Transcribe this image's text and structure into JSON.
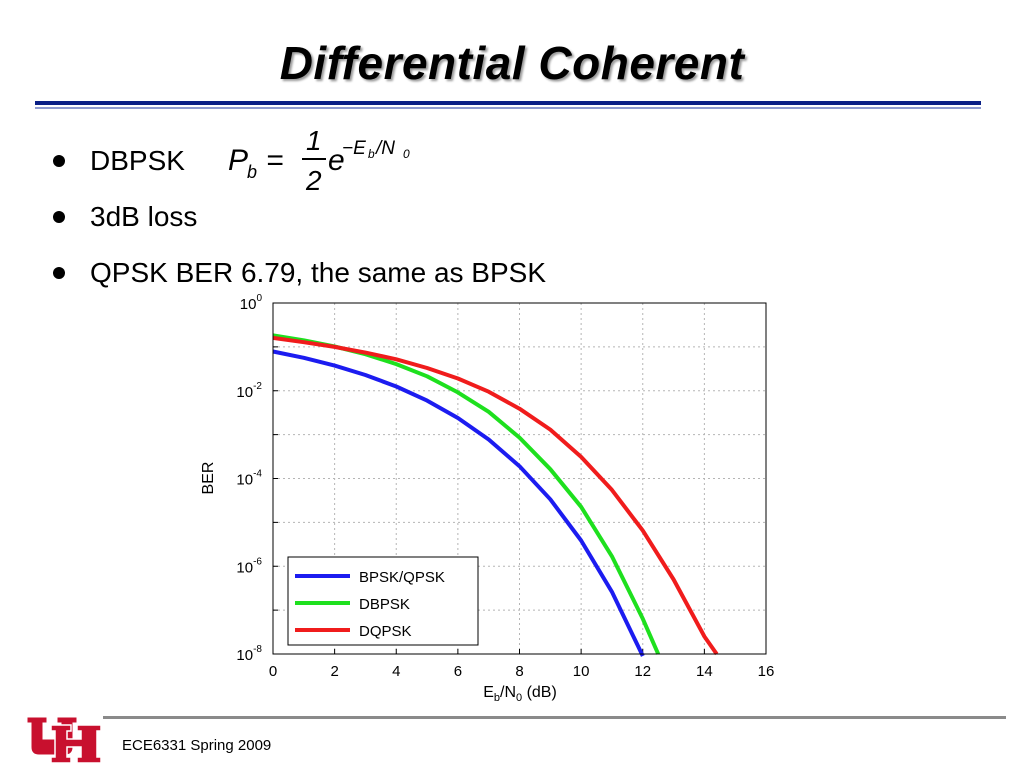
{
  "slide": {
    "title": "Differential Coherent",
    "bullets": [
      "DBPSK",
      "3dB loss",
      "QPSK BER 6.79, the same as BPSK"
    ],
    "formula": {
      "lhs": "P",
      "lhs_sub": "b",
      "equals": "=",
      "numerator": "1",
      "denominator": "2",
      "base": "e",
      "exponent": "−E",
      "exp_sub1": "b",
      "exp_slash": "/N",
      "exp_sub2": "0"
    },
    "footer": "ECE6331 Spring 2009"
  },
  "colors": {
    "title_rule": "#0a1f86",
    "logo_red": "#c8102e"
  },
  "chart_data": {
    "type": "line",
    "title": "",
    "xlabel_main": "E",
    "xlabel_sub1": "b",
    "xlabel_mid": "/N",
    "xlabel_sub2": "0",
    "xlabel_tail": " (dB)",
    "ylabel": "BER",
    "xlim": [
      0,
      16
    ],
    "ylim": [
      1e-08,
      1
    ],
    "yscale": "log",
    "grid": true,
    "legend_position": "bottom-left",
    "x_ticks": [
      "0",
      "2",
      "4",
      "6",
      "8",
      "10",
      "12",
      "14",
      "16"
    ],
    "y_ticks": [
      {
        "base": "10",
        "exp": "0"
      },
      {
        "base": "10",
        "exp": "-2"
      },
      {
        "base": "10",
        "exp": "-4"
      },
      {
        "base": "10",
        "exp": "-6"
      },
      {
        "base": "10",
        "exp": "-8"
      }
    ],
    "series": [
      {
        "name": "BPSK/QPSK",
        "color": "#1c1cf0",
        "x": [
          0,
          1,
          2,
          3,
          4,
          5,
          6,
          7,
          8,
          9,
          10,
          11,
          12
        ],
        "y": [
          0.0786,
          0.0563,
          0.0375,
          0.0229,
          0.0125,
          0.00595,
          0.00239,
          0.000773,
          0.000191,
          3.36e-05,
          3.87e-06,
          2.61e-07,
          9.01e-09
        ]
      },
      {
        "name": "DBPSK",
        "color": "#1ee01e",
        "x": [
          0,
          1,
          2,
          3,
          4,
          5,
          6,
          7,
          8,
          9,
          10,
          11,
          12,
          12.5
        ],
        "y": [
          0.184,
          0.141,
          0.102,
          0.068,
          0.0404,
          0.0213,
          0.00916,
          0.00332,
          0.000855,
          0.000163,
          2.27e-05,
          1.69e-06,
          6.34e-08,
          1e-08
        ]
      },
      {
        "name": "DQPSK",
        "color": "#f01c1c",
        "x": [
          0,
          1,
          2,
          3,
          4,
          5,
          6,
          7,
          8,
          9,
          10,
          11,
          12,
          13,
          14,
          14.4
        ],
        "y": [
          0.16,
          0.128,
          0.1,
          0.074,
          0.052,
          0.033,
          0.019,
          0.0095,
          0.0039,
          0.0013,
          0.00031,
          5.5e-05,
          6.5e-06,
          5e-07,
          2.5e-08,
          1e-08
        ]
      }
    ]
  }
}
